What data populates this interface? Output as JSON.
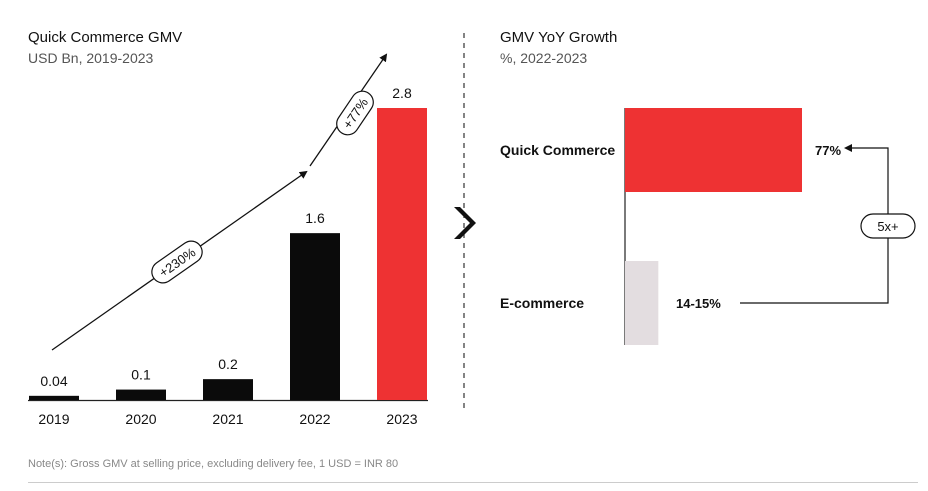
{
  "left": {
    "title": "Quick Commerce GMV",
    "subtitle": "USD Bn, 2019-2023",
    "growth_labels": [
      "+230%",
      "+77%"
    ]
  },
  "right": {
    "title": "GMV YoY Growth",
    "subtitle": "%, 2022-2023",
    "multiple_label": "5x+"
  },
  "note": "Note(s): Gross GMV at selling price, excluding delivery fee, 1 USD = INR 80",
  "colors": {
    "black": "#0b0b0b",
    "red": "#ee3233",
    "ecommerce": "#e3dde0",
    "text": "#111111"
  },
  "chart_data": [
    {
      "type": "bar",
      "title": "Quick Commerce GMV",
      "subtitle": "USD Bn, 2019-2023",
      "categories": [
        "2019",
        "2020",
        "2021",
        "2022",
        "2023"
      ],
      "values": [
        0.04,
        0.1,
        0.2,
        1.6,
        2.8
      ],
      "value_labels": [
        "0.04",
        "0.1",
        "0.2",
        "1.6",
        "2.8"
      ],
      "highlight": "2023",
      "ylim": [
        0,
        2.8
      ],
      "annotations": [
        "+230%",
        "+77%"
      ]
    },
    {
      "type": "bar",
      "orientation": "horizontal",
      "title": "GMV YoY Growth",
      "subtitle": "%, 2022-2023",
      "categories": [
        "Quick Commerce",
        "E-commerce"
      ],
      "values": [
        77,
        14.5
      ],
      "value_labels": [
        "77%",
        "14-15%"
      ],
      "annotation": "5x+"
    }
  ]
}
